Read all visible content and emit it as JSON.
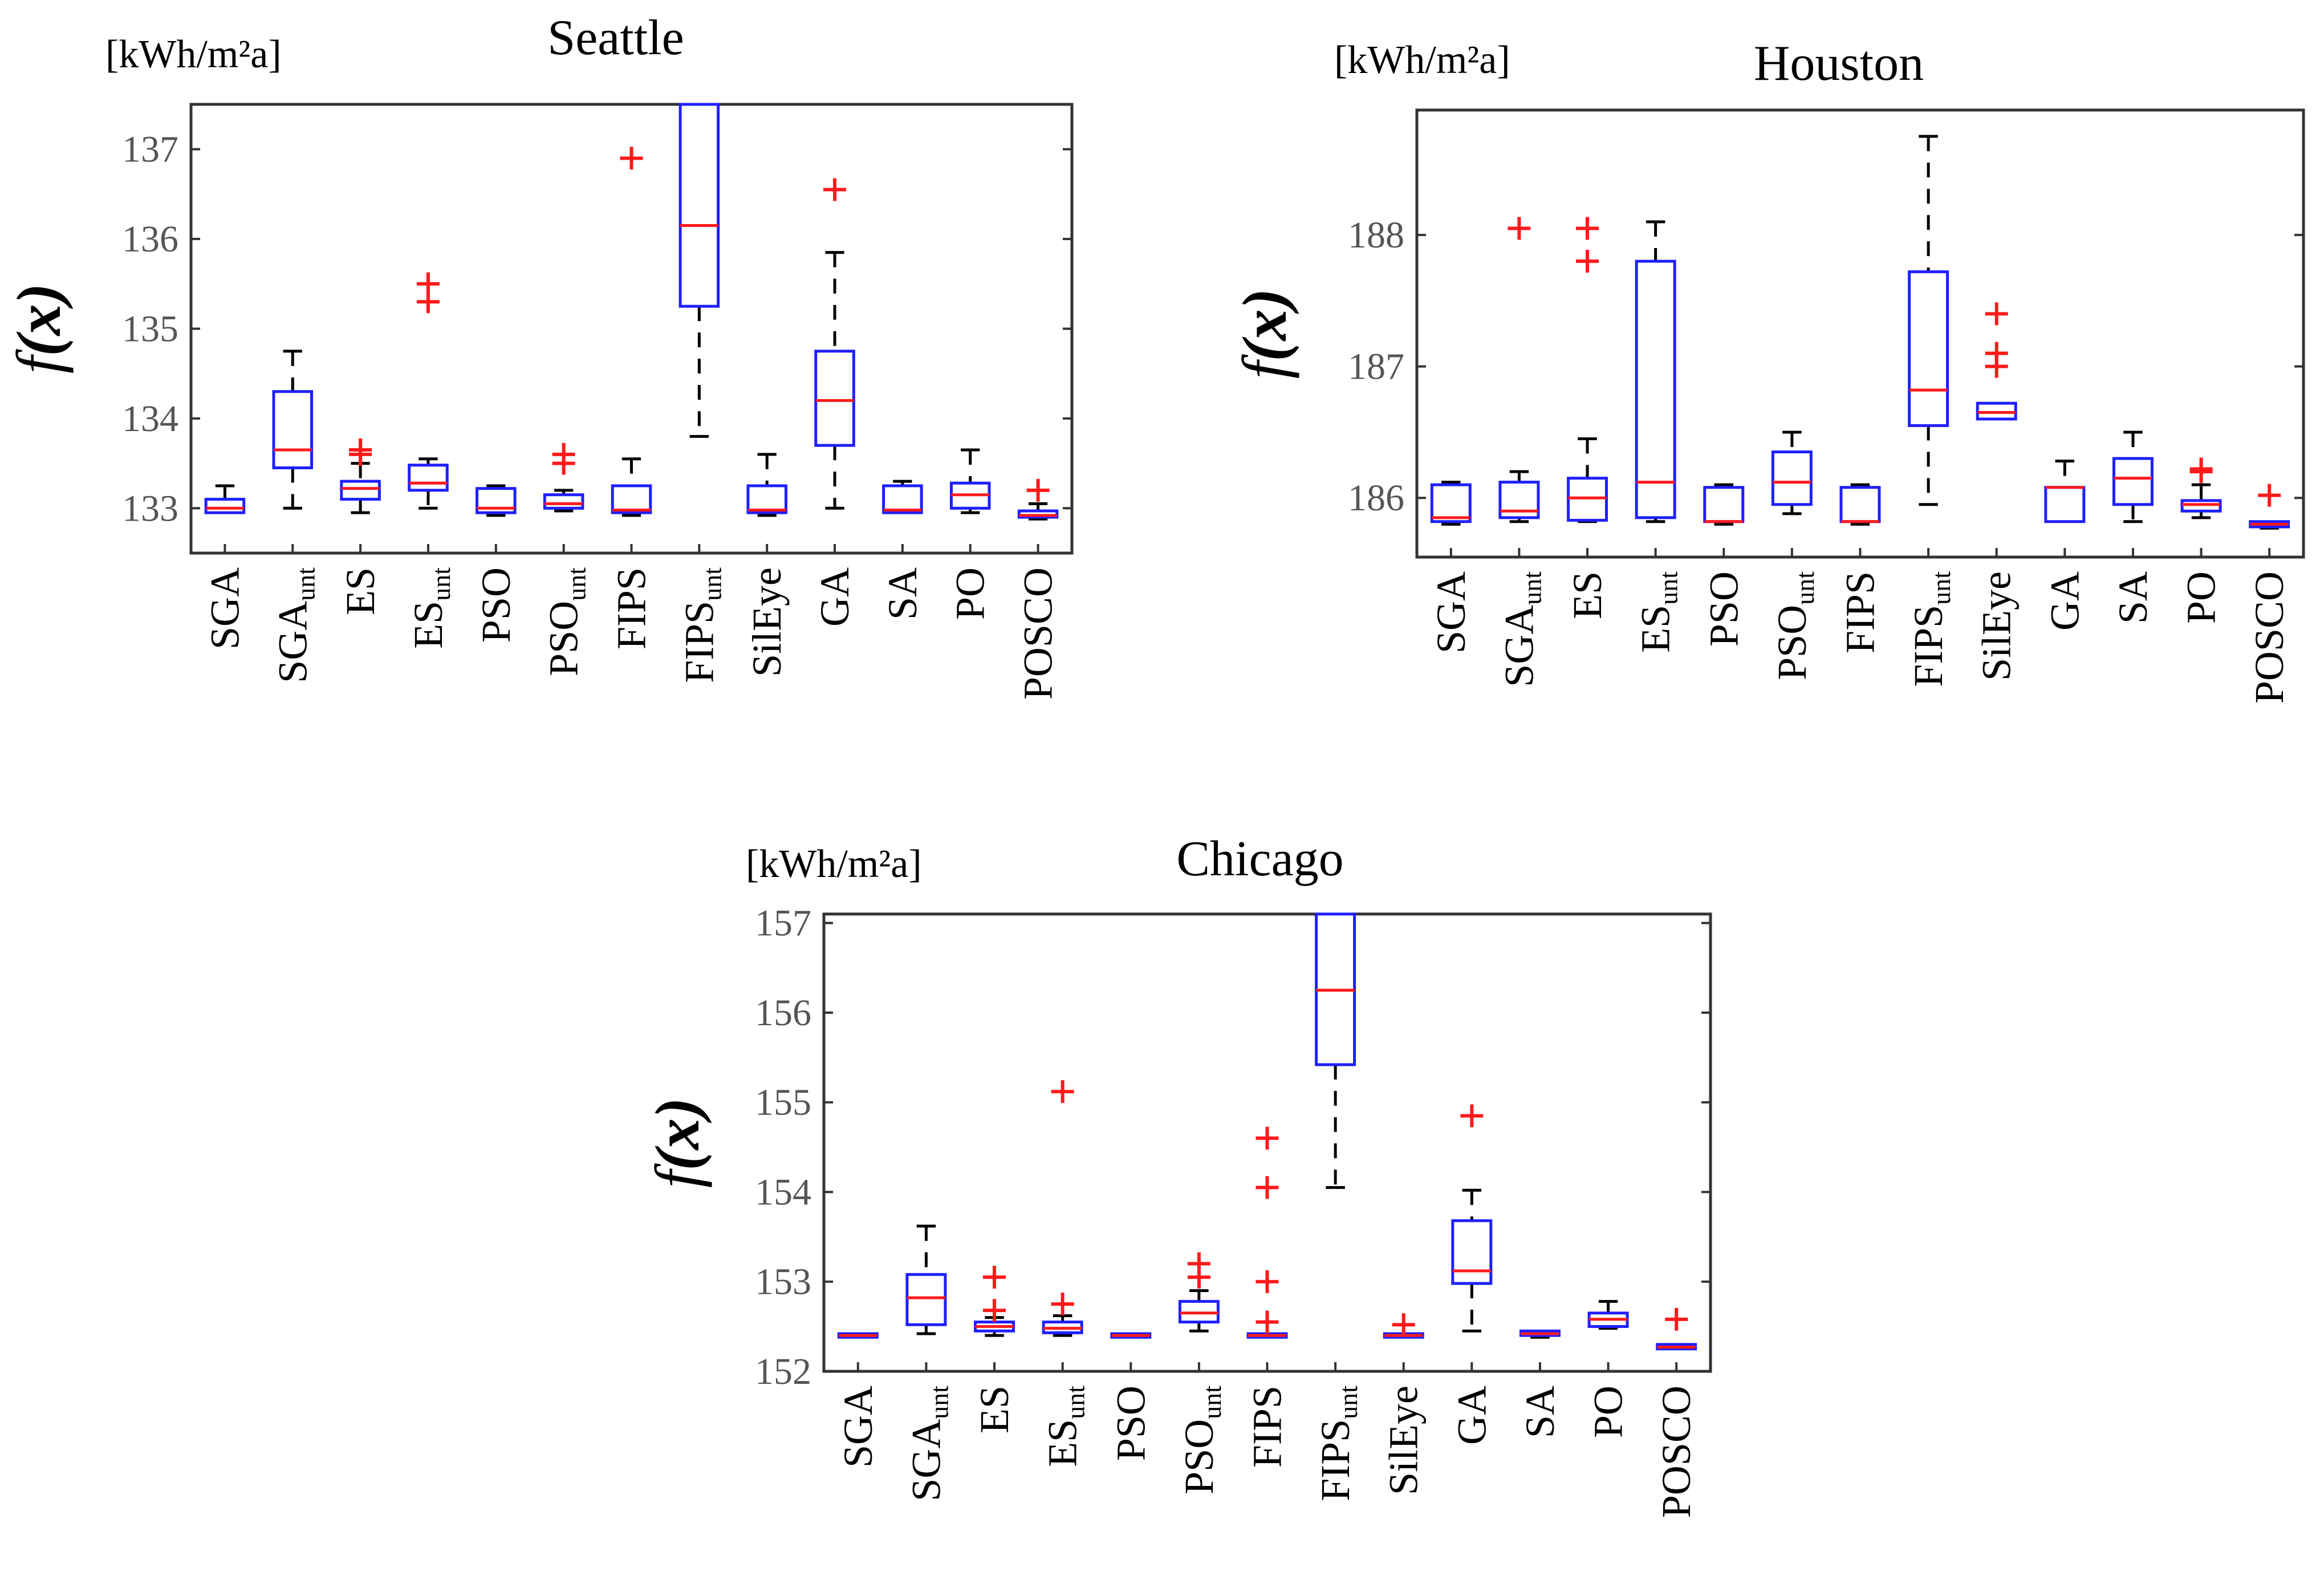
{
  "figure": {
    "chart_data": [
      {
        "type": "box",
        "title": "Seattle",
        "unit": "[kWh/m²a]",
        "ylabel_main": "f",
        "ylabel_arg": "(x)",
        "ylim": [
          132.5,
          137.5
        ],
        "yticks": [
          133,
          134,
          135,
          136,
          137
        ],
        "categories": [
          {
            "main": "SGA",
            "sub": ""
          },
          {
            "main": "SGA",
            "sub": "unt"
          },
          {
            "main": "ES",
            "sub": ""
          },
          {
            "main": "ES",
            "sub": "unt"
          },
          {
            "main": "PSO",
            "sub": ""
          },
          {
            "main": "PSO",
            "sub": "unt"
          },
          {
            "main": "FIPS",
            "sub": ""
          },
          {
            "main": "FIPS",
            "sub": "unt"
          },
          {
            "main": "SilEye",
            "sub": ""
          },
          {
            "main": "GA",
            "sub": ""
          },
          {
            "main": "SA",
            "sub": ""
          },
          {
            "main": "PO",
            "sub": ""
          },
          {
            "main": "POSCO",
            "sub": ""
          }
        ],
        "boxes": [
          {
            "wlo": 132.95,
            "q1": 132.95,
            "med": 133.0,
            "q3": 133.1,
            "whi": 133.25,
            "outliers": []
          },
          {
            "wlo": 133.0,
            "q1": 133.45,
            "med": 133.65,
            "q3": 134.3,
            "whi": 134.75,
            "outliers": []
          },
          {
            "wlo": 132.95,
            "q1": 133.1,
            "med": 133.22,
            "q3": 133.3,
            "whi": 133.5,
            "outliers": [
              133.6,
              133.65
            ]
          },
          {
            "wlo": 133.0,
            "q1": 133.2,
            "med": 133.28,
            "q3": 133.48,
            "whi": 133.55,
            "outliers": [
              135.3,
              135.5
            ]
          },
          {
            "wlo": 132.92,
            "q1": 132.95,
            "med": 133.0,
            "q3": 133.22,
            "whi": 133.25,
            "outliers": []
          },
          {
            "wlo": 132.97,
            "q1": 133.0,
            "med": 133.05,
            "q3": 133.15,
            "whi": 133.2,
            "outliers": [
              133.5,
              133.6
            ]
          },
          {
            "wlo": 132.92,
            "q1": 132.95,
            "med": 132.98,
            "q3": 133.25,
            "whi": 133.55,
            "outliers": [
              136.9
            ]
          },
          {
            "wlo": 133.8,
            "q1": 135.25,
            "med": 136.15,
            "q3": 137.5,
            "whi": 137.5,
            "outliers": []
          },
          {
            "wlo": 132.92,
            "q1": 132.95,
            "med": 132.98,
            "q3": 133.25,
            "whi": 133.6,
            "outliers": []
          },
          {
            "wlo": 133.0,
            "q1": 133.7,
            "med": 134.2,
            "q3": 134.75,
            "whi": 135.85,
            "outliers": [
              136.55
            ]
          },
          {
            "wlo": 132.95,
            "q1": 132.95,
            "med": 132.98,
            "q3": 133.25,
            "whi": 133.3,
            "outliers": []
          },
          {
            "wlo": 132.95,
            "q1": 133.0,
            "med": 133.15,
            "q3": 133.28,
            "whi": 133.65,
            "outliers": []
          },
          {
            "wlo": 132.88,
            "q1": 132.9,
            "med": 132.92,
            "q3": 132.97,
            "whi": 133.05,
            "outliers": [
              133.2
            ]
          }
        ]
      },
      {
        "type": "box",
        "title": "Houston",
        "unit": "[kWh/m²a]",
        "ylabel_main": "f",
        "ylabel_arg": "(x)",
        "ylim": [
          185.55,
          188.95
        ],
        "yticks": [
          186,
          187,
          188
        ],
        "categories": [
          {
            "main": "SGA",
            "sub": ""
          },
          {
            "main": "SGA",
            "sub": "unt"
          },
          {
            "main": "ES",
            "sub": ""
          },
          {
            "main": "ES",
            "sub": "unt"
          },
          {
            "main": "PSO",
            "sub": ""
          },
          {
            "main": "PSO",
            "sub": "unt"
          },
          {
            "main": "FIPS",
            "sub": ""
          },
          {
            "main": "FIPS",
            "sub": "unt"
          },
          {
            "main": "SilEye",
            "sub": ""
          },
          {
            "main": "GA",
            "sub": ""
          },
          {
            "main": "SA",
            "sub": ""
          },
          {
            "main": "PO",
            "sub": ""
          },
          {
            "main": "POSCO",
            "sub": ""
          }
        ],
        "boxes": [
          {
            "wlo": 185.8,
            "q1": 185.82,
            "med": 185.85,
            "q3": 186.1,
            "whi": 186.12,
            "outliers": []
          },
          {
            "wlo": 185.82,
            "q1": 185.85,
            "med": 185.9,
            "q3": 186.12,
            "whi": 186.2,
            "outliers": [
              188.05
            ]
          },
          {
            "wlo": 185.82,
            "q1": 185.83,
            "med": 186.0,
            "q3": 186.15,
            "whi": 186.45,
            "outliers": [
              187.8,
              188.05
            ]
          },
          {
            "wlo": 185.82,
            "q1": 185.85,
            "med": 186.12,
            "q3": 187.8,
            "whi": 188.1,
            "outliers": []
          },
          {
            "wlo": 185.8,
            "q1": 185.82,
            "med": 185.82,
            "q3": 186.08,
            "whi": 186.1,
            "outliers": []
          },
          {
            "wlo": 185.88,
            "q1": 185.95,
            "med": 186.12,
            "q3": 186.35,
            "whi": 186.5,
            "outliers": []
          },
          {
            "wlo": 185.8,
            "q1": 185.82,
            "med": 185.82,
            "q3": 186.08,
            "whi": 186.1,
            "outliers": []
          },
          {
            "wlo": 185.95,
            "q1": 186.55,
            "med": 186.82,
            "q3": 187.72,
            "whi": 188.75,
            "outliers": []
          },
          {
            "wlo": 186.6,
            "q1": 186.6,
            "med": 186.65,
            "q3": 186.72,
            "whi": 186.72,
            "outliers": [
              187.0,
              187.1,
              187.4
            ]
          },
          {
            "wlo": 185.82,
            "q1": 185.82,
            "med": 186.08,
            "q3": 186.08,
            "whi": 186.28,
            "outliers": []
          },
          {
            "wlo": 185.82,
            "q1": 185.95,
            "med": 186.15,
            "q3": 186.3,
            "whi": 186.5,
            "outliers": []
          },
          {
            "wlo": 185.85,
            "q1": 185.9,
            "med": 185.95,
            "q3": 185.98,
            "whi": 186.1,
            "outliers": [
              186.2,
              186.22
            ]
          },
          {
            "wlo": 185.77,
            "q1": 185.78,
            "med": 185.8,
            "q3": 185.82,
            "whi": 185.82,
            "outliers": [
              186.02
            ]
          }
        ]
      },
      {
        "type": "box",
        "title": "Chicago",
        "unit": "[kWh/m²a]",
        "ylabel_main": "f",
        "ylabel_arg": "(x)",
        "ylim": [
          152.0,
          157.1
        ],
        "yticks": [
          152,
          153,
          154,
          155,
          156,
          157
        ],
        "categories": [
          {
            "main": "SGA",
            "sub": ""
          },
          {
            "main": "SGA",
            "sub": "unt"
          },
          {
            "main": "ES",
            "sub": ""
          },
          {
            "main": "ES",
            "sub": "unt"
          },
          {
            "main": "PSO",
            "sub": ""
          },
          {
            "main": "PSO",
            "sub": "unt"
          },
          {
            "main": "FIPS",
            "sub": ""
          },
          {
            "main": "FIPS",
            "sub": "unt"
          },
          {
            "main": "SilEye",
            "sub": ""
          },
          {
            "main": "GA",
            "sub": ""
          },
          {
            "main": "SA",
            "sub": ""
          },
          {
            "main": "PO",
            "sub": ""
          },
          {
            "main": "POSCO",
            "sub": ""
          }
        ],
        "boxes": [
          {
            "wlo": 152.38,
            "q1": 152.38,
            "med": 152.4,
            "q3": 152.42,
            "whi": 152.42,
            "outliers": []
          },
          {
            "wlo": 152.42,
            "q1": 152.52,
            "med": 152.82,
            "q3": 153.08,
            "whi": 153.62,
            "outliers": []
          },
          {
            "wlo": 152.4,
            "q1": 152.45,
            "med": 152.5,
            "q3": 152.55,
            "whi": 152.6,
            "outliers": [
              152.68,
              153.05
            ]
          },
          {
            "wlo": 152.4,
            "q1": 152.43,
            "med": 152.48,
            "q3": 152.55,
            "whi": 152.62,
            "outliers": [
              152.75,
              155.12
            ]
          },
          {
            "wlo": 152.38,
            "q1": 152.38,
            "med": 152.4,
            "q3": 152.42,
            "whi": 152.42,
            "outliers": []
          },
          {
            "wlo": 152.45,
            "q1": 152.55,
            "med": 152.65,
            "q3": 152.78,
            "whi": 152.9,
            "outliers": [
              153.05,
              153.2
            ]
          },
          {
            "wlo": 152.38,
            "q1": 152.38,
            "med": 152.4,
            "q3": 152.42,
            "whi": 152.42,
            "outliers": [
              152.55,
              153.0,
              154.05,
              154.6
            ]
          },
          {
            "wlo": 154.05,
            "q1": 155.42,
            "med": 156.25,
            "q3": 157.1,
            "whi": 157.1,
            "outliers": []
          },
          {
            "wlo": 152.38,
            "q1": 152.38,
            "med": 152.4,
            "q3": 152.42,
            "whi": 152.42,
            "outliers": [
              152.52
            ]
          },
          {
            "wlo": 152.45,
            "q1": 152.98,
            "med": 153.12,
            "q3": 153.68,
            "whi": 154.02,
            "outliers": [
              154.85
            ]
          },
          {
            "wlo": 152.38,
            "q1": 152.4,
            "med": 152.42,
            "q3": 152.45,
            "whi": 152.45,
            "outliers": []
          },
          {
            "wlo": 152.48,
            "q1": 152.5,
            "med": 152.58,
            "q3": 152.65,
            "whi": 152.78,
            "outliers": []
          },
          {
            "wlo": 152.25,
            "q1": 152.25,
            "med": 152.27,
            "q3": 152.3,
            "whi": 152.3,
            "outliers": [
              152.58
            ]
          }
        ]
      }
    ]
  }
}
